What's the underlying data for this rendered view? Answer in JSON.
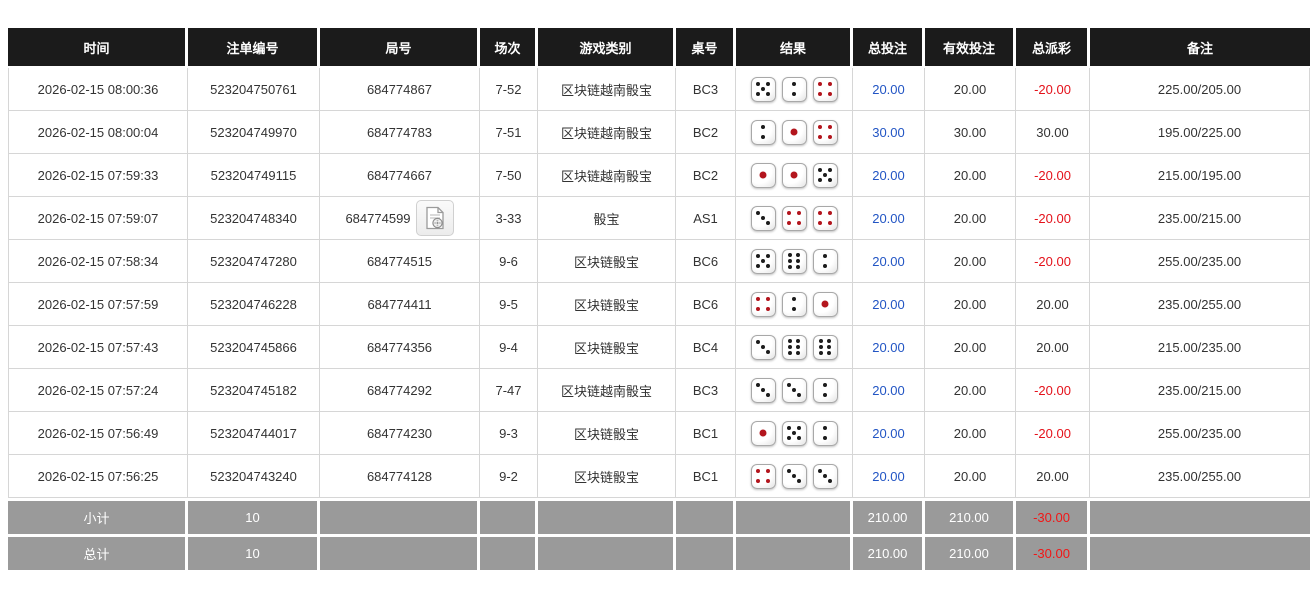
{
  "colors": {
    "header_bg": "#1b1b1b",
    "header_text": "#ffffff",
    "footer_bg": "#9a9a9a",
    "footer_text": "#ffffff",
    "bet_blue": "#2255c4",
    "negative_red": "#e4121b",
    "body_text": "#333333",
    "border": "#d6d6d6",
    "page_bg": "#ffffff"
  },
  "icons": {
    "video_replay": "video-file-icon"
  },
  "table": {
    "columns": [
      "时间",
      "注单编号",
      "局号",
      "场次",
      "游戏类别",
      "桌号",
      "结果",
      "总投注",
      "有效投注",
      "总派彩",
      "备注"
    ],
    "rows": [
      {
        "time": "2026-02-15 08:00:36",
        "bet_id": "523204750761",
        "round_id": "684774867",
        "has_video": false,
        "session": "7-52",
        "game": "区块链越南骰宝",
        "table_no": "BC3",
        "dice": [
          5,
          2,
          4
        ],
        "total_bet": "20.00",
        "valid_bet": "20.00",
        "payout": "-20.00",
        "note": "225.00/205.00"
      },
      {
        "time": "2026-02-15 08:00:04",
        "bet_id": "523204749970",
        "round_id": "684774783",
        "has_video": false,
        "session": "7-51",
        "game": "区块链越南骰宝",
        "table_no": "BC2",
        "dice": [
          2,
          1,
          4
        ],
        "total_bet": "30.00",
        "valid_bet": "30.00",
        "payout": "30.00",
        "note": "195.00/225.00"
      },
      {
        "time": "2026-02-15 07:59:33",
        "bet_id": "523204749115",
        "round_id": "684774667",
        "has_video": false,
        "session": "7-50",
        "game": "区块链越南骰宝",
        "table_no": "BC2",
        "dice": [
          1,
          1,
          5
        ],
        "total_bet": "20.00",
        "valid_bet": "20.00",
        "payout": "-20.00",
        "note": "215.00/195.00"
      },
      {
        "time": "2026-02-15 07:59:07",
        "bet_id": "523204748340",
        "round_id": "684774599",
        "has_video": true,
        "session": "3-33",
        "game": "骰宝",
        "table_no": "AS1",
        "dice": [
          3,
          4,
          4
        ],
        "total_bet": "20.00",
        "valid_bet": "20.00",
        "payout": "-20.00",
        "note": "235.00/215.00"
      },
      {
        "time": "2026-02-15 07:58:34",
        "bet_id": "523204747280",
        "round_id": "684774515",
        "has_video": false,
        "session": "9-6",
        "game": "区块链骰宝",
        "table_no": "BC6",
        "dice": [
          5,
          6,
          2
        ],
        "total_bet": "20.00",
        "valid_bet": "20.00",
        "payout": "-20.00",
        "note": "255.00/235.00"
      },
      {
        "time": "2026-02-15 07:57:59",
        "bet_id": "523204746228",
        "round_id": "684774411",
        "has_video": false,
        "session": "9-5",
        "game": "区块链骰宝",
        "table_no": "BC6",
        "dice": [
          4,
          2,
          1
        ],
        "total_bet": "20.00",
        "valid_bet": "20.00",
        "payout": "20.00",
        "note": "235.00/255.00"
      },
      {
        "time": "2026-02-15 07:57:43",
        "bet_id": "523204745866",
        "round_id": "684774356",
        "has_video": false,
        "session": "9-4",
        "game": "区块链骰宝",
        "table_no": "BC4",
        "dice": [
          3,
          6,
          6
        ],
        "total_bet": "20.00",
        "valid_bet": "20.00",
        "payout": "20.00",
        "note": "215.00/235.00"
      },
      {
        "time": "2026-02-15 07:57:24",
        "bet_id": "523204745182",
        "round_id": "684774292",
        "has_video": false,
        "session": "7-47",
        "game": "区块链越南骰宝",
        "table_no": "BC3",
        "dice": [
          3,
          3,
          2
        ],
        "total_bet": "20.00",
        "valid_bet": "20.00",
        "payout": "-20.00",
        "note": "235.00/215.00"
      },
      {
        "time": "2026-02-15 07:56:49",
        "bet_id": "523204744017",
        "round_id": "684774230",
        "has_video": false,
        "session": "9-3",
        "game": "区块链骰宝",
        "table_no": "BC1",
        "dice": [
          1,
          5,
          2
        ],
        "total_bet": "20.00",
        "valid_bet": "20.00",
        "payout": "-20.00",
        "note": "255.00/235.00"
      },
      {
        "time": "2026-02-15 07:56:25",
        "bet_id": "523204743240",
        "round_id": "684774128",
        "has_video": false,
        "session": "9-2",
        "game": "区块链骰宝",
        "table_no": "BC1",
        "dice": [
          4,
          3,
          3
        ],
        "total_bet": "20.00",
        "valid_bet": "20.00",
        "payout": "20.00",
        "note": "235.00/255.00"
      }
    ],
    "summary_rows": [
      {
        "label": "小计",
        "count": "10",
        "total_bet": "210.00",
        "valid_bet": "210.00",
        "payout": "-30.00"
      },
      {
        "label": "总计",
        "count": "10",
        "total_bet": "210.00",
        "valid_bet": "210.00",
        "payout": "-30.00"
      }
    ]
  }
}
